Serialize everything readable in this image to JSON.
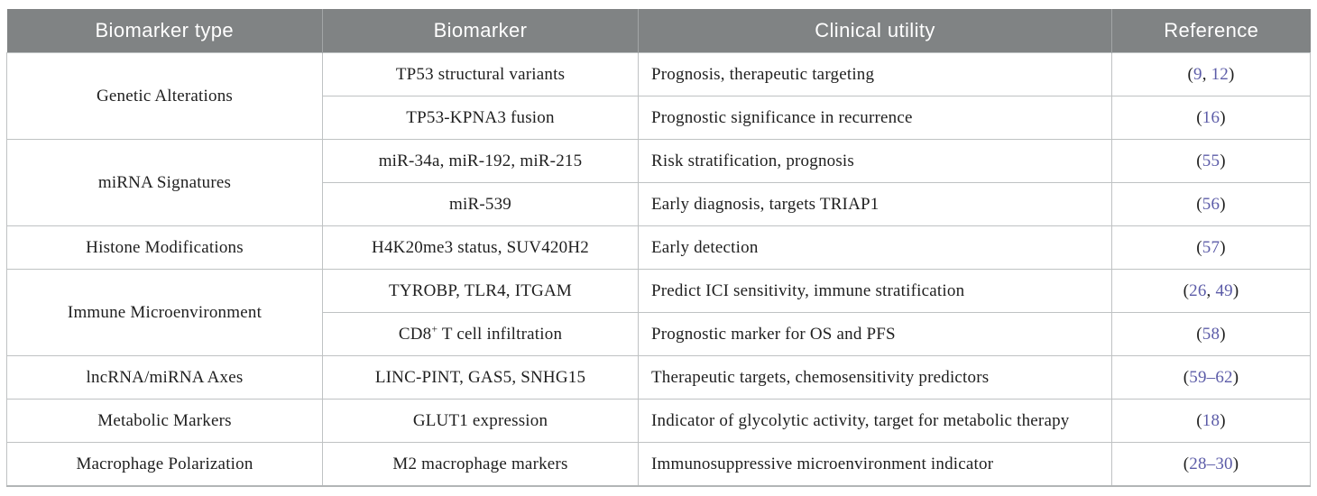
{
  "colors": {
    "header_background": "#808384",
    "header_text": "#ffffff",
    "body_text": "#1f1f1f",
    "border": "#bfc2c3",
    "reference_link": "#5c5ca8"
  },
  "table": {
    "header": {
      "columns": [
        {
          "label": "Biomarker type"
        },
        {
          "label": "Biomarker"
        },
        {
          "label": "Clinical utility"
        },
        {
          "label": "Reference"
        }
      ]
    },
    "groups": [
      {
        "type": "Genetic Alterations",
        "rows": [
          {
            "biomarker": "TP53 structural variants",
            "utility": "Prognosis, therapeutic targeting",
            "reference": [
              {
                "t": "("
              },
              {
                "t": "9",
                "link": true
              },
              {
                "t": ", "
              },
              {
                "t": "12",
                "link": true
              },
              {
                "t": ")"
              }
            ]
          },
          {
            "biomarker": "TP53-KPNA3 fusion",
            "utility": "Prognostic significance in recurrence",
            "reference": [
              {
                "t": "("
              },
              {
                "t": "16",
                "link": true
              },
              {
                "t": ")"
              }
            ]
          }
        ]
      },
      {
        "type": "miRNA Signatures",
        "rows": [
          {
            "biomarker": "miR-34a, miR-192, miR-215",
            "utility": "Risk stratification, prognosis",
            "reference": [
              {
                "t": "("
              },
              {
                "t": "55",
                "link": true
              },
              {
                "t": ")"
              }
            ]
          },
          {
            "biomarker": "miR-539",
            "utility": "Early diagnosis, targets TRIAP1",
            "reference": [
              {
                "t": "("
              },
              {
                "t": "56",
                "link": true
              },
              {
                "t": ")"
              }
            ]
          }
        ]
      },
      {
        "type": "Histone Modifications",
        "rows": [
          {
            "biomarker": "H4K20me3 status, SUV420H2",
            "utility": "Early detection",
            "reference": [
              {
                "t": "("
              },
              {
                "t": "57",
                "link": true
              },
              {
                "t": ")"
              }
            ]
          }
        ]
      },
      {
        "type": "Immune Microenvironment",
        "rows": [
          {
            "biomarker": "TYROBP, TLR4, ITGAM",
            "utility": "Predict ICI sensitivity, immune stratification",
            "reference": [
              {
                "t": "("
              },
              {
                "t": "26",
                "link": true
              },
              {
                "t": ", "
              },
              {
                "t": "49",
                "link": true
              },
              {
                "t": ")"
              }
            ]
          },
          {
            "biomarker": [
              {
                "t": "CD8"
              },
              {
                "t": "+",
                "sup": true
              },
              {
                "t": " T cell infiltration"
              }
            ],
            "utility": "Prognostic marker for OS and PFS",
            "reference": [
              {
                "t": "("
              },
              {
                "t": "58",
                "link": true
              },
              {
                "t": ")"
              }
            ]
          }
        ]
      },
      {
        "type": "lncRNA/miRNA Axes",
        "rows": [
          {
            "biomarker": "LINC-PINT, GAS5, SNHG15",
            "utility": "Therapeutic targets, chemosensitivity predictors",
            "reference": [
              {
                "t": "("
              },
              {
                "t": "59–62",
                "link": true
              },
              {
                "t": ")"
              }
            ]
          }
        ]
      },
      {
        "type": "Metabolic Markers",
        "rows": [
          {
            "biomarker": "GLUT1 expression",
            "utility": "Indicator of glycolytic activity, target for metabolic therapy",
            "reference": [
              {
                "t": "("
              },
              {
                "t": "18",
                "link": true
              },
              {
                "t": ")"
              }
            ]
          }
        ]
      },
      {
        "type": "Macrophage Polarization",
        "rows": [
          {
            "biomarker": "M2 macrophage markers",
            "utility": "Immunosuppressive microenvironment indicator",
            "reference": [
              {
                "t": "("
              },
              {
                "t": "28–30",
                "link": true
              },
              {
                "t": ")"
              }
            ]
          }
        ]
      }
    ]
  }
}
